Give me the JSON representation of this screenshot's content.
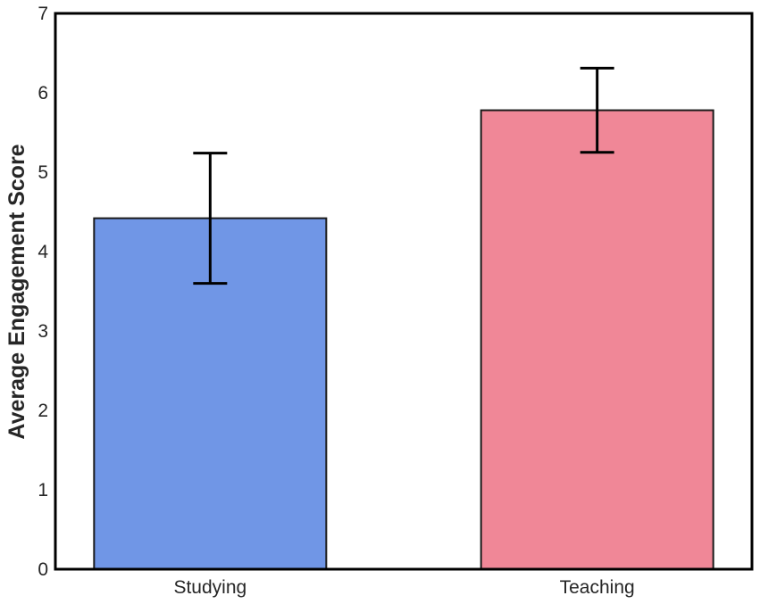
{
  "chart_data": {
    "type": "bar",
    "title": "",
    "xlabel": "",
    "ylabel": "Average Engagement Score",
    "categories": [
      "Studying",
      "Teaching"
    ],
    "values": [
      4.42,
      5.78
    ],
    "error": [
      0.82,
      0.53
    ],
    "colors": [
      "#7096e6",
      "#f08797"
    ],
    "ylim": [
      0,
      7
    ],
    "yticks": [
      "0",
      "1",
      "2",
      "3",
      "4",
      "5",
      "6",
      "7"
    ],
    "grid": false,
    "legend": "none"
  }
}
